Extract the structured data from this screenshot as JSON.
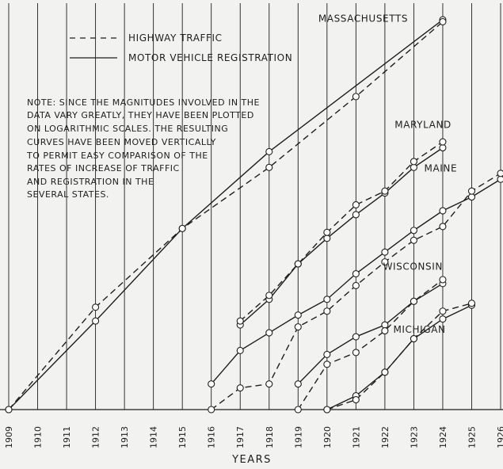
{
  "chart_data": {
    "type": "line",
    "xlabel": "YEARS",
    "ylabel": "",
    "y_scale": "log",
    "x": [
      1909,
      1910,
      1911,
      1912,
      1913,
      1914,
      1915,
      1916,
      1917,
      1918,
      1919,
      1920,
      1921,
      1922,
      1923,
      1924,
      1925,
      1926
    ],
    "x_tick_labels": [
      "1909",
      "1910",
      "1911",
      "1912",
      "1913",
      "1914",
      "1915",
      "1916",
      "1917",
      "1918",
      "1919",
      "1920",
      "1921",
      "1922",
      "1923",
      "1924",
      "1925",
      "1926"
    ],
    "xlim": [
      1909,
      1926
    ],
    "y_axis": "relative log scale (unlabeled)",
    "ylim": [
      0,
      100
    ],
    "grid": "vertical",
    "legend": {
      "placement": "top-left",
      "entries": [
        {
          "label": "HIGHWAY TRAFFIC",
          "style": "dashed"
        },
        {
          "label": "MOTOR VEHICLE REGISTRATION",
          "style": "solid"
        }
      ]
    },
    "note": [
      "NOTE: SINCE THE MAGNITUDES INVOLVED IN THE",
      "DATA VARY GREATLY, THEY HAVE BEEN PLOTTED",
      "ON LOGARITHMIC SCALES. THE RESULTING",
      "CURVES HAVE BEEN MOVED VERTICALLY",
      "TO PERMIT EASY COMPARISON OF THE",
      "RATES OF INCREASE OF TRAFFIC",
      "AND REGISTRATION IN THE",
      "SEVERAL STATES."
    ],
    "state_labels": [
      {
        "text": "MASSACHUSETTS",
        "anchor": [
          1922.8,
          98.5
        ]
      },
      {
        "text": "MARYLAND",
        "anchor": [
          1924.3,
          71.5
        ]
      },
      {
        "text": "MAINE",
        "anchor": [
          1924.5,
          60.5
        ]
      },
      {
        "text": "WISCONSIN",
        "anchor": [
          1924.0,
          35.5
        ]
      },
      {
        "text": "MICHIGAN",
        "anchor": [
          1924.1,
          19.5
        ]
      }
    ],
    "series": [
      {
        "name": "MASSACHUSETTS",
        "style": "solid",
        "x": [
          1909,
          1912,
          1915,
          1918,
          1924
        ],
        "y": [
          0,
          22.5,
          46,
          65.5,
          99
        ]
      },
      {
        "name": "MASSACHUSETTS",
        "style": "dashed",
        "x": [
          1909,
          1912,
          1915,
          1918,
          1921,
          1924
        ],
        "y": [
          0,
          26,
          46,
          61.5,
          79.5,
          98.5
        ]
      },
      {
        "name": "MARYLAND",
        "style": "solid",
        "x": [
          1917,
          1918,
          1919,
          1920,
          1921,
          1922,
          1923,
          1924
        ],
        "y": [
          21.5,
          28,
          37,
          43.5,
          49.5,
          55,
          61.5,
          66.5
        ]
      },
      {
        "name": "MARYLAND",
        "style": "dashed",
        "x": [
          1917,
          1918,
          1919,
          1920,
          1921,
          1922,
          1923,
          1924
        ],
        "y": [
          22.5,
          29,
          37,
          45,
          52,
          55.5,
          63,
          68
        ]
      },
      {
        "name": "MAINE",
        "style": "solid",
        "x": [
          1916,
          1917,
          1918,
          1919,
          1920,
          1921,
          1922,
          1923,
          1924,
          1925,
          1926
        ],
        "y": [
          6.5,
          15,
          19.5,
          24,
          28,
          34.5,
          40,
          45.5,
          50.5,
          54,
          58.5
        ]
      },
      {
        "name": "MAINE",
        "style": "dashed",
        "x": [
          1916,
          1917,
          1918,
          1919,
          1920,
          1921,
          1922,
          1923,
          1924,
          1925,
          1926
        ],
        "y": [
          0,
          5.5,
          6.5,
          21,
          25,
          31.5,
          37.5,
          43,
          46.5,
          55.5,
          60
        ]
      },
      {
        "name": "WISCONSIN",
        "style": "solid",
        "x": [
          1919,
          1920,
          1921,
          1922,
          1923,
          1924
        ],
        "y": [
          6.5,
          14,
          18.5,
          21.5,
          27.5,
          32
        ]
      },
      {
        "name": "WISCONSIN",
        "style": "dashed",
        "x": [
          1919,
          1920,
          1921,
          1922,
          1923,
          1924
        ],
        "y": [
          0,
          11.5,
          14.5,
          20,
          27.5,
          33
        ]
      },
      {
        "name": "MICHIGAN",
        "style": "solid",
        "x": [
          1920,
          1921,
          1922,
          1923,
          1924,
          1925
        ],
        "y": [
          0,
          3.5,
          9.5,
          18,
          23,
          26.5
        ]
      },
      {
        "name": "MICHIGAN",
        "style": "dashed",
        "x": [
          1920,
          1921,
          1922,
          1923,
          1924,
          1925
        ],
        "y": [
          0,
          2.5,
          9.5,
          18,
          25,
          27
        ]
      }
    ]
  },
  "colors": {
    "background": "#f2f2f0",
    "ink": "#1e1e1e",
    "marker_fill": "#ffffff"
  }
}
